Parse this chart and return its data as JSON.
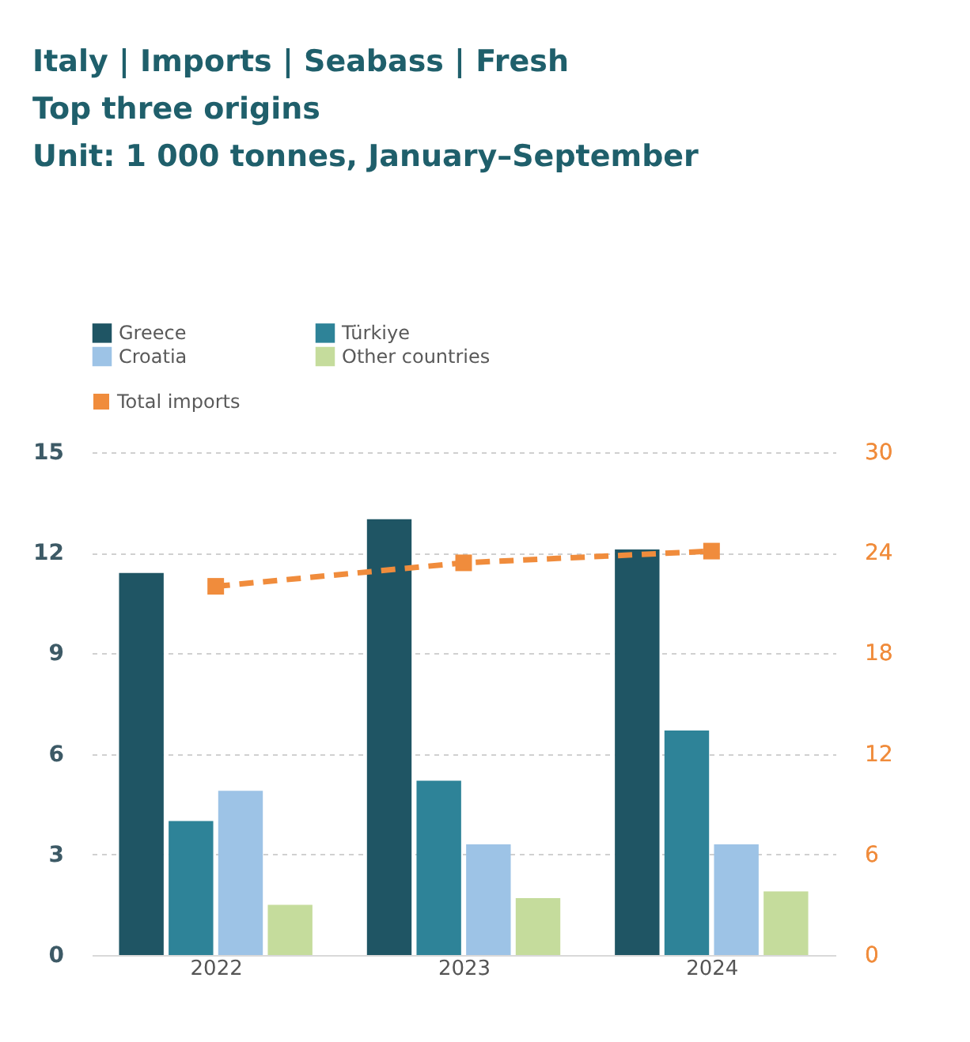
{
  "chart_data": {
    "type": "bar",
    "title": [
      "Italy | Imports | Seabass | Fresh",
      "Top three origins",
      "Unit: 1 000 tonnes, January–September"
    ],
    "categories": [
      "2022",
      "2023",
      "2024"
    ],
    "series": [
      {
        "name": "Greece",
        "color": "#1f5564",
        "values": [
          11.4,
          13.0,
          12.1
        ]
      },
      {
        "name": "Türkiye",
        "color": "#2e8398",
        "values": [
          4.0,
          5.2,
          6.7
        ]
      },
      {
        "name": "Croatia",
        "color": "#9dc3e6",
        "values": [
          4.9,
          3.3,
          3.3
        ]
      },
      {
        "name": "Other countries",
        "color": "#c5dc9c",
        "values": [
          1.5,
          1.7,
          1.9
        ]
      },
      {
        "name": "Total imports",
        "color": "#f08c3c",
        "type": "line",
        "axis": "y2",
        "values": [
          22.0,
          23.4,
          24.1
        ]
      }
    ],
    "ylim": [
      0,
      15
    ],
    "yticks": [
      0,
      3,
      6,
      9,
      12,
      15
    ],
    "y2lim": [
      0,
      30
    ],
    "y2ticks": [
      0,
      6,
      12,
      18,
      24,
      30
    ],
    "grid": "y",
    "legend": "top",
    "marker": "square",
    "line_style": "dashed"
  }
}
